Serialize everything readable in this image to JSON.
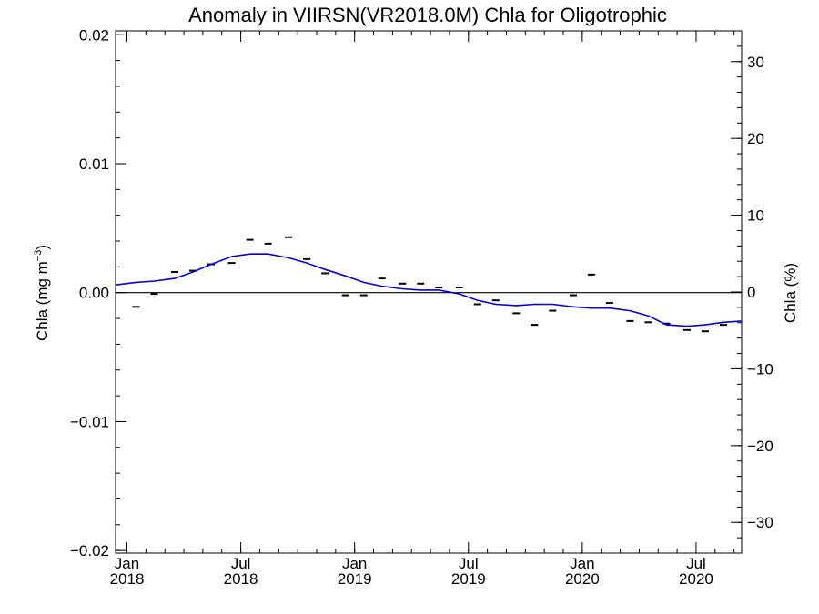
{
  "chart_data": {
    "type": "line",
    "title": "Anomaly in VIIRSN(VR2018.0M) Chla for Oligotrophic",
    "ylabel": "Chla (mg m",
    "ylabel_sup": "−3",
    "ylabel_close": ")",
    "y2label": "Chla (%)",
    "xlim": [
      2017.95,
      2020.7
    ],
    "ylim": [
      -0.0202,
      0.0203
    ],
    "y2lim": [
      -34,
      34
    ],
    "y_ticks": [
      -0.02,
      -0.01,
      0.0,
      0.01,
      0.02
    ],
    "y_tick_labels": [
      "−0.02",
      "−0.01",
      "0.00",
      "0.01",
      "0.02"
    ],
    "y2_ticks": [
      -30,
      -20,
      -10,
      0,
      10,
      20,
      30
    ],
    "y2_tick_labels": [
      "−30",
      "−20",
      "−10",
      "0",
      "10",
      "20",
      "30"
    ],
    "x_ticks": [
      {
        "x": 2018.0,
        "month": "Jan",
        "year": "2018"
      },
      {
        "x": 2018.5,
        "month": "Jul",
        "year": "2018"
      },
      {
        "x": 2019.0,
        "month": "Jan",
        "year": "2019"
      },
      {
        "x": 2019.5,
        "month": "Jul",
        "year": "2019"
      },
      {
        "x": 2020.0,
        "month": "Jan",
        "year": "2020"
      },
      {
        "x": 2020.5,
        "month": "Jul",
        "year": "2020"
      }
    ],
    "zero_line": 0.0,
    "series": [
      {
        "type": "markers",
        "color": "#000000",
        "x": [
          2018.04,
          2018.12,
          2018.21,
          2018.29,
          2018.37,
          2018.46,
          2018.54,
          2018.62,
          2018.71,
          2018.79,
          2018.87,
          2018.96,
          2019.04,
          2019.12,
          2019.21,
          2019.29,
          2019.37,
          2019.46,
          2019.54,
          2019.62,
          2019.71,
          2019.79,
          2019.87,
          2019.96,
          2020.04,
          2020.12,
          2020.21,
          2020.29,
          2020.37,
          2020.46,
          2020.54,
          2020.62
        ],
        "y": [
          -0.0011,
          -0.0001,
          0.0016,
          0.0017,
          0.0022,
          0.0023,
          0.0041,
          0.0038,
          0.0043,
          0.0026,
          0.0015,
          -0.0002,
          -0.0002,
          0.0011,
          0.0007,
          0.0007,
          0.0004,
          0.0004,
          -0.0009,
          -0.0006,
          -0.0016,
          -0.0025,
          -0.0014,
          -0.0002,
          0.0014,
          -0.0008,
          -0.0022,
          -0.0023,
          -0.0024,
          -0.0029,
          -0.003,
          -0.0025
        ]
      },
      {
        "type": "line",
        "color": "#0000dd",
        "x": [
          2017.95,
          2018.04,
          2018.12,
          2018.21,
          2018.29,
          2018.37,
          2018.46,
          2018.54,
          2018.62,
          2018.71,
          2018.79,
          2018.87,
          2018.96,
          2019.04,
          2019.12,
          2019.21,
          2019.29,
          2019.37,
          2019.46,
          2019.54,
          2019.62,
          2019.71,
          2019.79,
          2019.87,
          2019.96,
          2020.04,
          2020.12,
          2020.21,
          2020.29,
          2020.37,
          2020.46,
          2020.54,
          2020.62,
          2020.7
        ],
        "y": [
          0.0006,
          0.0008,
          0.0009,
          0.0011,
          0.0016,
          0.0022,
          0.0028,
          0.003,
          0.003,
          0.0027,
          0.0023,
          0.0018,
          0.0013,
          0.0008,
          0.0005,
          0.0003,
          0.0002,
          0.0002,
          -0.0001,
          -0.0006,
          -0.0009,
          -0.001,
          -0.0009,
          -0.0009,
          -0.0011,
          -0.0012,
          -0.0012,
          -0.0014,
          -0.0018,
          -0.0025,
          -0.0026,
          -0.0025,
          -0.0023,
          -0.0022
        ]
      }
    ]
  }
}
